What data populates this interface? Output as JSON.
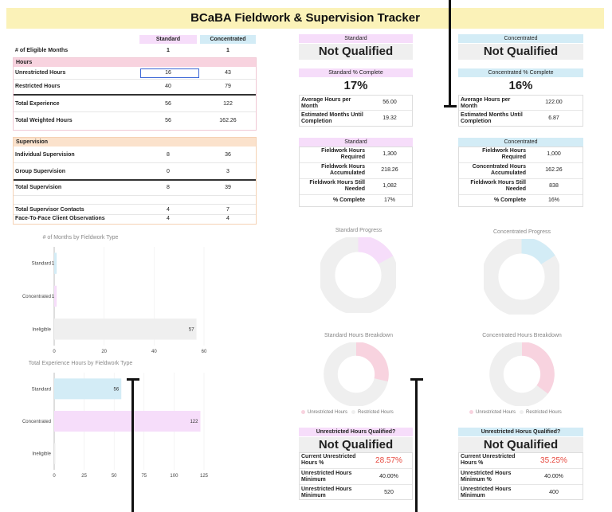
{
  "title": "BCaBA Fieldwork & Supervision Tracker",
  "colors": {
    "title_bg": "#fbf2b8",
    "standard": "#f6ddfa",
    "concentrated": "#d3ecf6",
    "supervision": "#fbe2cc",
    "red": "#e7493f"
  },
  "left_table": {
    "col_standard": "Standard",
    "col_concentrated": "Concentrated",
    "eligible_label": "# of Eligible Months",
    "eligible_std": "1",
    "eligible_con": "1",
    "hours_header": "Hours",
    "unrestricted_label": "Unrestricted Hours",
    "unrestricted_std": "16",
    "unrestricted_con": "43",
    "restricted_label": "Restricted Hours",
    "restricted_std": "40",
    "restricted_con": "79",
    "total_exp_label": "Total Experience",
    "total_exp_std": "56",
    "total_exp_con": "122",
    "total_weighted_label": "Total Weighted Hours",
    "total_weighted_std": "56",
    "total_weighted_con": "162.26",
    "supervision_header": "Supervision",
    "indiv_label": "Individual Supervision",
    "indiv_std": "8",
    "indiv_con": "36",
    "group_label": "Group Supervision",
    "group_std": "0",
    "group_con": "3",
    "total_sup_label": "Total Supervision",
    "total_sup_std": "8",
    "total_sup_con": "39",
    "contacts_label": "Total Supervisor Contacts",
    "contacts_std": "4",
    "contacts_con": "7",
    "f2f_label": "Face-To-Face Client Observations",
    "f2f_std": "4",
    "f2f_con": "4"
  },
  "standard_panel": {
    "header": "Standard",
    "status": "Not Qualified",
    "pct_header": "Standard % Complete",
    "pct": "17%",
    "avg_label": "Average Hours per Month",
    "avg_val": "56.00",
    "est_label": "Estimated Months Until Completion",
    "est_val": "19.32",
    "detail_header": "Standard",
    "req_label": "Fieldwork Hours Required",
    "req_val": "1,300",
    "acc_label": "Fieldwork Hours Accumulated",
    "acc_val": "218.26",
    "need_label": "Fieldwork Hours Still Needed",
    "need_val": "1,082",
    "complete_label": "% Complete",
    "complete_val": "17%"
  },
  "concentrated_panel": {
    "header": "Concentrated",
    "status": "Not Qualified",
    "pct_header": "Concentrated % Complete",
    "pct": "16%",
    "avg_label": "Average Hours per Month",
    "avg_val": "122.00",
    "est_label": "Estimated Months Until Completion",
    "est_val": "6.87",
    "detail_header": "Concentrated",
    "req_label": "Fieldwork Hours Required",
    "req_val": "1,000",
    "acc_label": "Concentrated Hours Accumulated",
    "acc_val": "162.26",
    "need_label": "Fieldwork Hours Still Needed",
    "need_val": "838",
    "complete_label": "% Complete",
    "complete_val": "16%"
  },
  "donuts": {
    "standard_progress": {
      "title": "Standard Progress",
      "fraction": 0.17
    },
    "concentrated_progress": {
      "title": "Concentrated Progress",
      "fraction": 0.16
    },
    "standard_breakdown": {
      "title": "Standard Hours Breakdown",
      "fraction": 0.2857
    },
    "concentrated_breakdown": {
      "title": "Concentrated Hours Breakdown",
      "fraction": 0.3525
    },
    "legend_unrestricted": "Unrestricted Hours",
    "legend_restricted": "Restricted Hours"
  },
  "std_unrestricted_panel": {
    "header": "Unrestricted Hours Qualified?",
    "status": "Not Qualified",
    "current_label": "Current Unrestricted Hours %",
    "current_val": "28.57%",
    "min_label": "Unrestricted Hours Minimum",
    "min_val": "40.00%",
    "min2_label": "Unrestricted Hours Minimum",
    "min2_val": "520"
  },
  "con_unrestricted_panel": {
    "header": "Unrestricted Horus Qualified?",
    "status": "Not Qualified",
    "current_label": "Current Unrestricted Hours %",
    "current_val": "35.25%",
    "min_label": "Unrestricted Hours Minimum %",
    "min_val": "40.00%",
    "min2_label": "Unrestricted Hours Minimum",
    "min2_val": "400"
  },
  "chart_data": [
    {
      "type": "bar",
      "title": "# of Months by Fieldwork Type",
      "categories": [
        "Standard",
        "Concentrated",
        "Ineligible"
      ],
      "values": [
        1,
        1,
        57
      ],
      "xlim": [
        0,
        60
      ],
      "xticks": [
        "0",
        "20",
        "40",
        "60"
      ],
      "colors": [
        "#d3ecf6",
        "#f6ddfa",
        "#efefef"
      ]
    },
    {
      "type": "bar",
      "title": "Total Experience Hours by Fieldwork Type",
      "categories": [
        "Standard",
        "Concentrated",
        "Ineligible"
      ],
      "values": [
        56,
        122,
        0
      ],
      "xlim": [
        0,
        125
      ],
      "xticks": [
        "0",
        "25",
        "50",
        "75",
        "100",
        "125"
      ],
      "colors": [
        "#d3ecf6",
        "#f6ddfa",
        "#efefef"
      ]
    }
  ]
}
